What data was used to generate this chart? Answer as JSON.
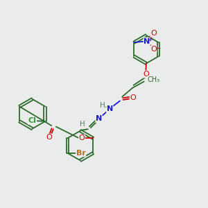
{
  "background_color": "#eaecec",
  "bond_color": "#2d6b2d",
  "atom_colors": {
    "O": "#cc0000",
    "N": "#1a1acc",
    "Cl": "#2ea02e",
    "Br": "#b87020",
    "H": "#5a7a5a",
    "C": "#2d6b2d"
  },
  "figsize": [
    3.0,
    3.0
  ],
  "dpi": 100,
  "bond_lw": 1.3,
  "font_size": 7.5,
  "bg": "#eaecec"
}
